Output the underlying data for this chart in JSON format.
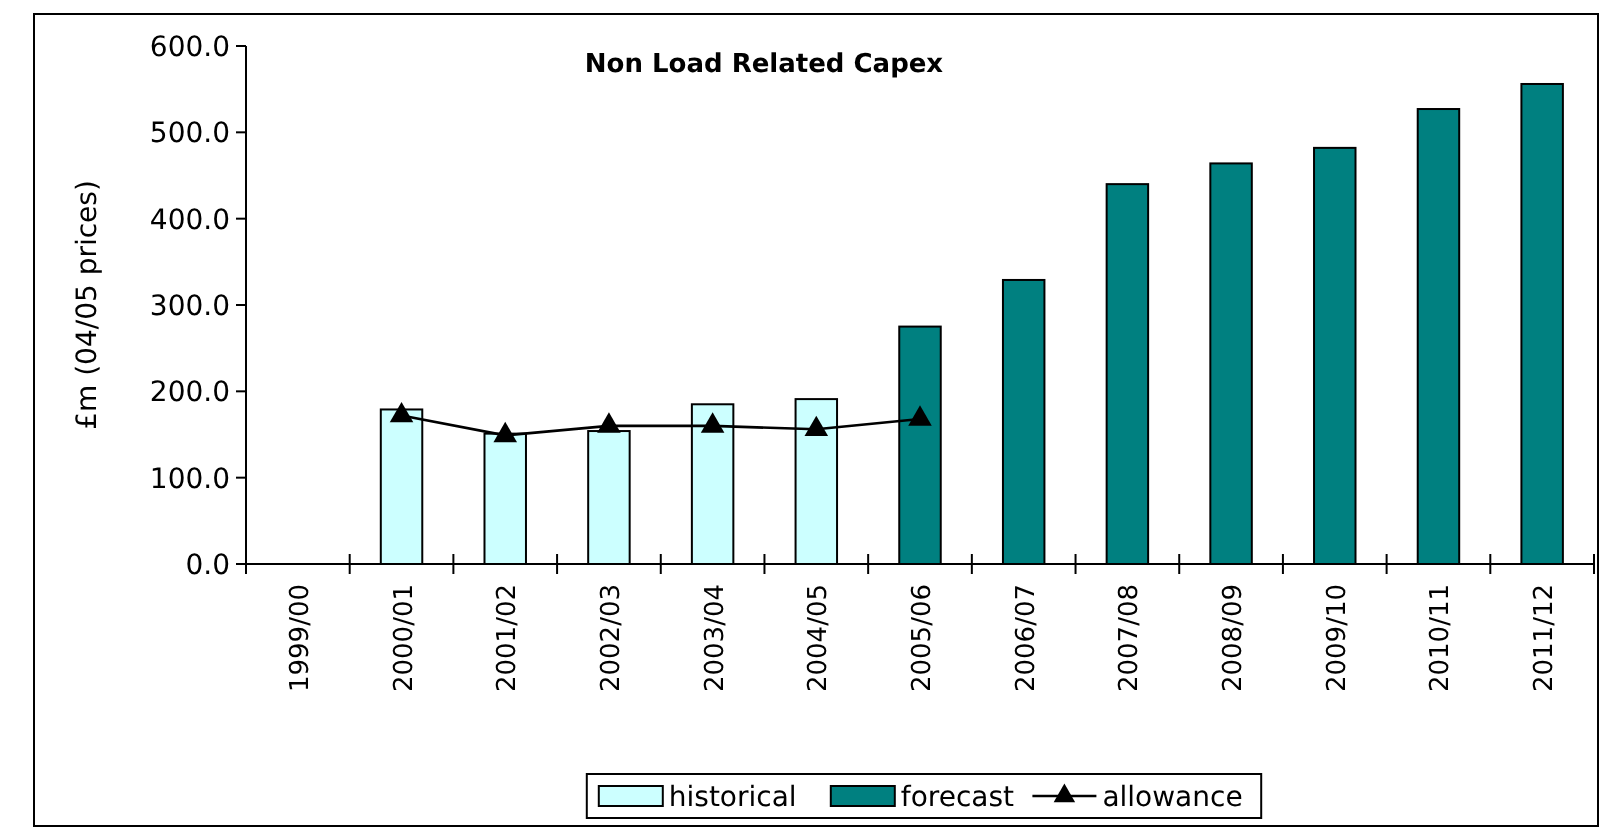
{
  "chart_data": {
    "type": "bar",
    "title": "Non Load Related Capex",
    "ylabel": "£m  (04/05 prices)",
    "categories": [
      "1999/00",
      "2000/01",
      "2001/02",
      "2002/03",
      "2003/04",
      "2004/05",
      "2005/06",
      "2006/07",
      "2007/08",
      "2008/09",
      "2009/10",
      "2010/11",
      "2011/12"
    ],
    "series": [
      {
        "name": "historical",
        "color": "#ccffff",
        "values": [
          null,
          179,
          151,
          154,
          185,
          191,
          null,
          null,
          null,
          null,
          null,
          null,
          null
        ]
      },
      {
        "name": "forecast",
        "color": "#008080",
        "values": [
          null,
          null,
          null,
          null,
          null,
          null,
          275,
          329,
          440,
          464,
          482,
          527,
          556
        ]
      },
      {
        "name": "allowance",
        "type": "line",
        "color": "#000000",
        "marker": "triangle",
        "values": [
          null,
          172,
          149,
          160,
          160,
          156,
          168,
          null,
          null,
          null,
          null,
          null,
          null
        ]
      }
    ],
    "ylim": [
      0,
      600
    ],
    "yticks": [
      {
        "value": 0,
        "label": "0.0"
      },
      {
        "value": 100,
        "label": "100.0"
      },
      {
        "value": 200,
        "label": "200.0"
      },
      {
        "value": 300,
        "label": "300.0"
      },
      {
        "value": 400,
        "label": "400.0"
      },
      {
        "value": 500,
        "label": "500.0"
      },
      {
        "value": 600,
        "label": "600.0"
      }
    ],
    "grid": false,
    "legend": "bottom"
  }
}
